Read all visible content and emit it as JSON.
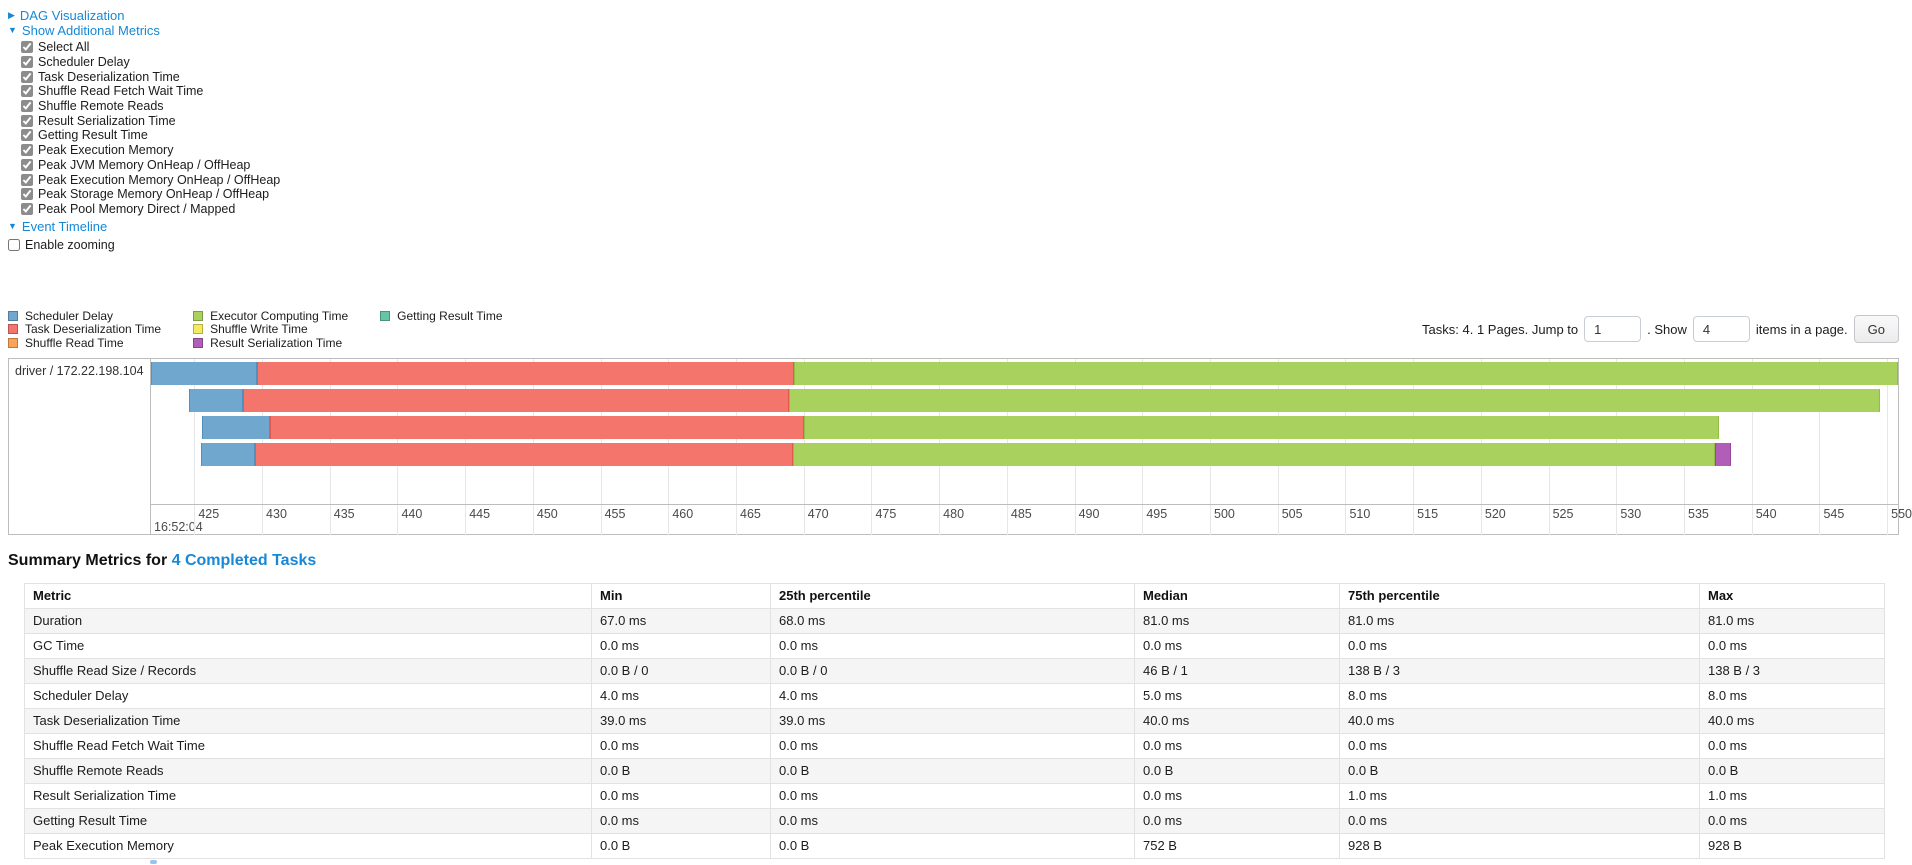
{
  "colors": {
    "link": "#1788d5"
  },
  "sections": {
    "dag": {
      "label": "DAG Visualization",
      "arrow": "▶"
    },
    "additional_metrics": {
      "label": "Show Additional Metrics",
      "arrow": "▼"
    },
    "event_timeline": {
      "label": "Event Timeline",
      "arrow": "▼"
    }
  },
  "metric_checkboxes": [
    "Select All",
    "Scheduler Delay",
    "Task Deserialization Time",
    "Shuffle Read Fetch Wait Time",
    "Shuffle Remote Reads",
    "Result Serialization Time",
    "Getting Result Time",
    "Peak Execution Memory",
    "Peak JVM Memory OnHeap / OffHeap",
    "Peak Execution Memory OnHeap / OffHeap",
    "Peak Storage Memory OnHeap / OffHeap",
    "Peak Pool Memory Direct / Mapped"
  ],
  "enable_zooming": {
    "label": "Enable zooming",
    "checked": false
  },
  "legend": {
    "columns": [
      [
        "scheduler-delay",
        "task-deserialization",
        "shuffle-read"
      ],
      [
        "executor-computing",
        "shuffle-write",
        "result-serialization"
      ],
      [
        "getting-result"
      ]
    ],
    "labels": {
      "scheduler-delay": "Scheduler Delay",
      "task-deserialization": "Task Deserialization Time",
      "shuffle-read": "Shuffle Read Time",
      "executor-computing": "Executor Computing Time",
      "shuffle-write": "Shuffle Write Time",
      "result-serialization": "Result Serialization Time",
      "getting-result": "Getting Result Time"
    }
  },
  "pagination": {
    "tasks_text": "Tasks: 4. 1 Pages. Jump to",
    "jump_value": "1",
    "show_label": ". Show",
    "show_value": "4",
    "suffix_text": "items in a page.",
    "go_label": "Go"
  },
  "chart_data": {
    "type": "timeline",
    "group_label": "driver / 172.22.198.104",
    "x_start": 421.8,
    "x_end": 550.8,
    "ticks": [
      425,
      430,
      435,
      440,
      445,
      450,
      455,
      460,
      465,
      470,
      475,
      480,
      485,
      490,
      495,
      500,
      505,
      510,
      515,
      520,
      525,
      530,
      535,
      540,
      545,
      550
    ],
    "time_label": "16:52:04",
    "palette": {
      "scheduler-delay": {
        "fill": "#6FA7CF",
        "border": "#5590BC"
      },
      "task-deserialization": {
        "fill": "#F4756C",
        "border": "#E05A51"
      },
      "shuffle-read": {
        "fill": "#FCA356",
        "border": "#E8893B"
      },
      "executor-computing": {
        "fill": "#A9D15D",
        "border": "#94BC45"
      },
      "shuffle-write": {
        "fill": "#F5E95E",
        "border": "#DCCF3E"
      },
      "result-serialization": {
        "fill": "#B05EB8",
        "border": "#95479E"
      },
      "getting-result": {
        "fill": "#65C5A6",
        "border": "#4BAD8D"
      }
    },
    "tasks": [
      {
        "segments": [
          {
            "name": "scheduler-delay",
            "start": 421.8,
            "end": 429.6
          },
          {
            "name": "task-deserialization",
            "start": 429.6,
            "end": 469.3
          },
          {
            "name": "executor-computing",
            "start": 469.3,
            "end": 550.8
          }
        ]
      },
      {
        "segments": [
          {
            "name": "scheduler-delay",
            "start": 424.6,
            "end": 428.6
          },
          {
            "name": "task-deserialization",
            "start": 428.6,
            "end": 468.9
          },
          {
            "name": "executor-computing",
            "start": 468.9,
            "end": 549.5
          }
        ]
      },
      {
        "segments": [
          {
            "name": "scheduler-delay",
            "start": 425.6,
            "end": 430.6
          },
          {
            "name": "task-deserialization",
            "start": 430.6,
            "end": 470.0
          },
          {
            "name": "executor-computing",
            "start": 470.0,
            "end": 537.6
          }
        ]
      },
      {
        "segments": [
          {
            "name": "scheduler-delay",
            "start": 425.5,
            "end": 429.5
          },
          {
            "name": "task-deserialization",
            "start": 429.5,
            "end": 469.2
          },
          {
            "name": "executor-computing",
            "start": 469.2,
            "end": 537.3
          },
          {
            "name": "result-serialization",
            "start": 537.3,
            "end": 538.5
          }
        ]
      }
    ]
  },
  "summary": {
    "title_prefix": "Summary Metrics for",
    "title_link": "4 Completed Tasks",
    "table": {
      "headers": [
        "Metric",
        "Min",
        "25th percentile",
        "Median",
        "75th percentile",
        "Max"
      ],
      "rows": [
        {
          "metric": "Duration",
          "values": [
            "67.0 ms",
            "68.0 ms",
            "81.0 ms",
            "81.0 ms",
            "81.0 ms"
          ]
        },
        {
          "metric": "GC Time",
          "values": [
            "0.0 ms",
            "0.0 ms",
            "0.0 ms",
            "0.0 ms",
            "0.0 ms"
          ]
        },
        {
          "metric": "Shuffle Read Size / Records",
          "values": [
            "0.0 B / 0",
            "0.0 B / 0",
            "46 B / 1",
            "138 B / 3",
            "138 B / 3"
          ]
        },
        {
          "metric": "Scheduler Delay",
          "values": [
            "4.0 ms",
            "4.0 ms",
            "5.0 ms",
            "8.0 ms",
            "8.0 ms"
          ]
        },
        {
          "metric": "Task Deserialization Time",
          "values": [
            "39.0 ms",
            "39.0 ms",
            "40.0 ms",
            "40.0 ms",
            "40.0 ms"
          ]
        },
        {
          "metric": "Shuffle Read Fetch Wait Time",
          "values": [
            "0.0 ms",
            "0.0 ms",
            "0.0 ms",
            "0.0 ms",
            "0.0 ms"
          ]
        },
        {
          "metric": "Shuffle Remote Reads",
          "values": [
            "0.0 B",
            "0.0 B",
            "0.0 B",
            "0.0 B",
            "0.0 B"
          ]
        },
        {
          "metric": "Result Serialization Time",
          "values": [
            "0.0 ms",
            "0.0 ms",
            "0.0 ms",
            "1.0 ms",
            "1.0 ms"
          ]
        },
        {
          "metric": "Getting Result Time",
          "values": [
            "0.0 ms",
            "0.0 ms",
            "0.0 ms",
            "0.0 ms",
            "0.0 ms"
          ]
        },
        {
          "metric": "Peak Execution Memory",
          "values": [
            "0.0 B",
            "0.0 B",
            "752 B",
            "928 B",
            "928 B"
          ]
        }
      ]
    }
  }
}
